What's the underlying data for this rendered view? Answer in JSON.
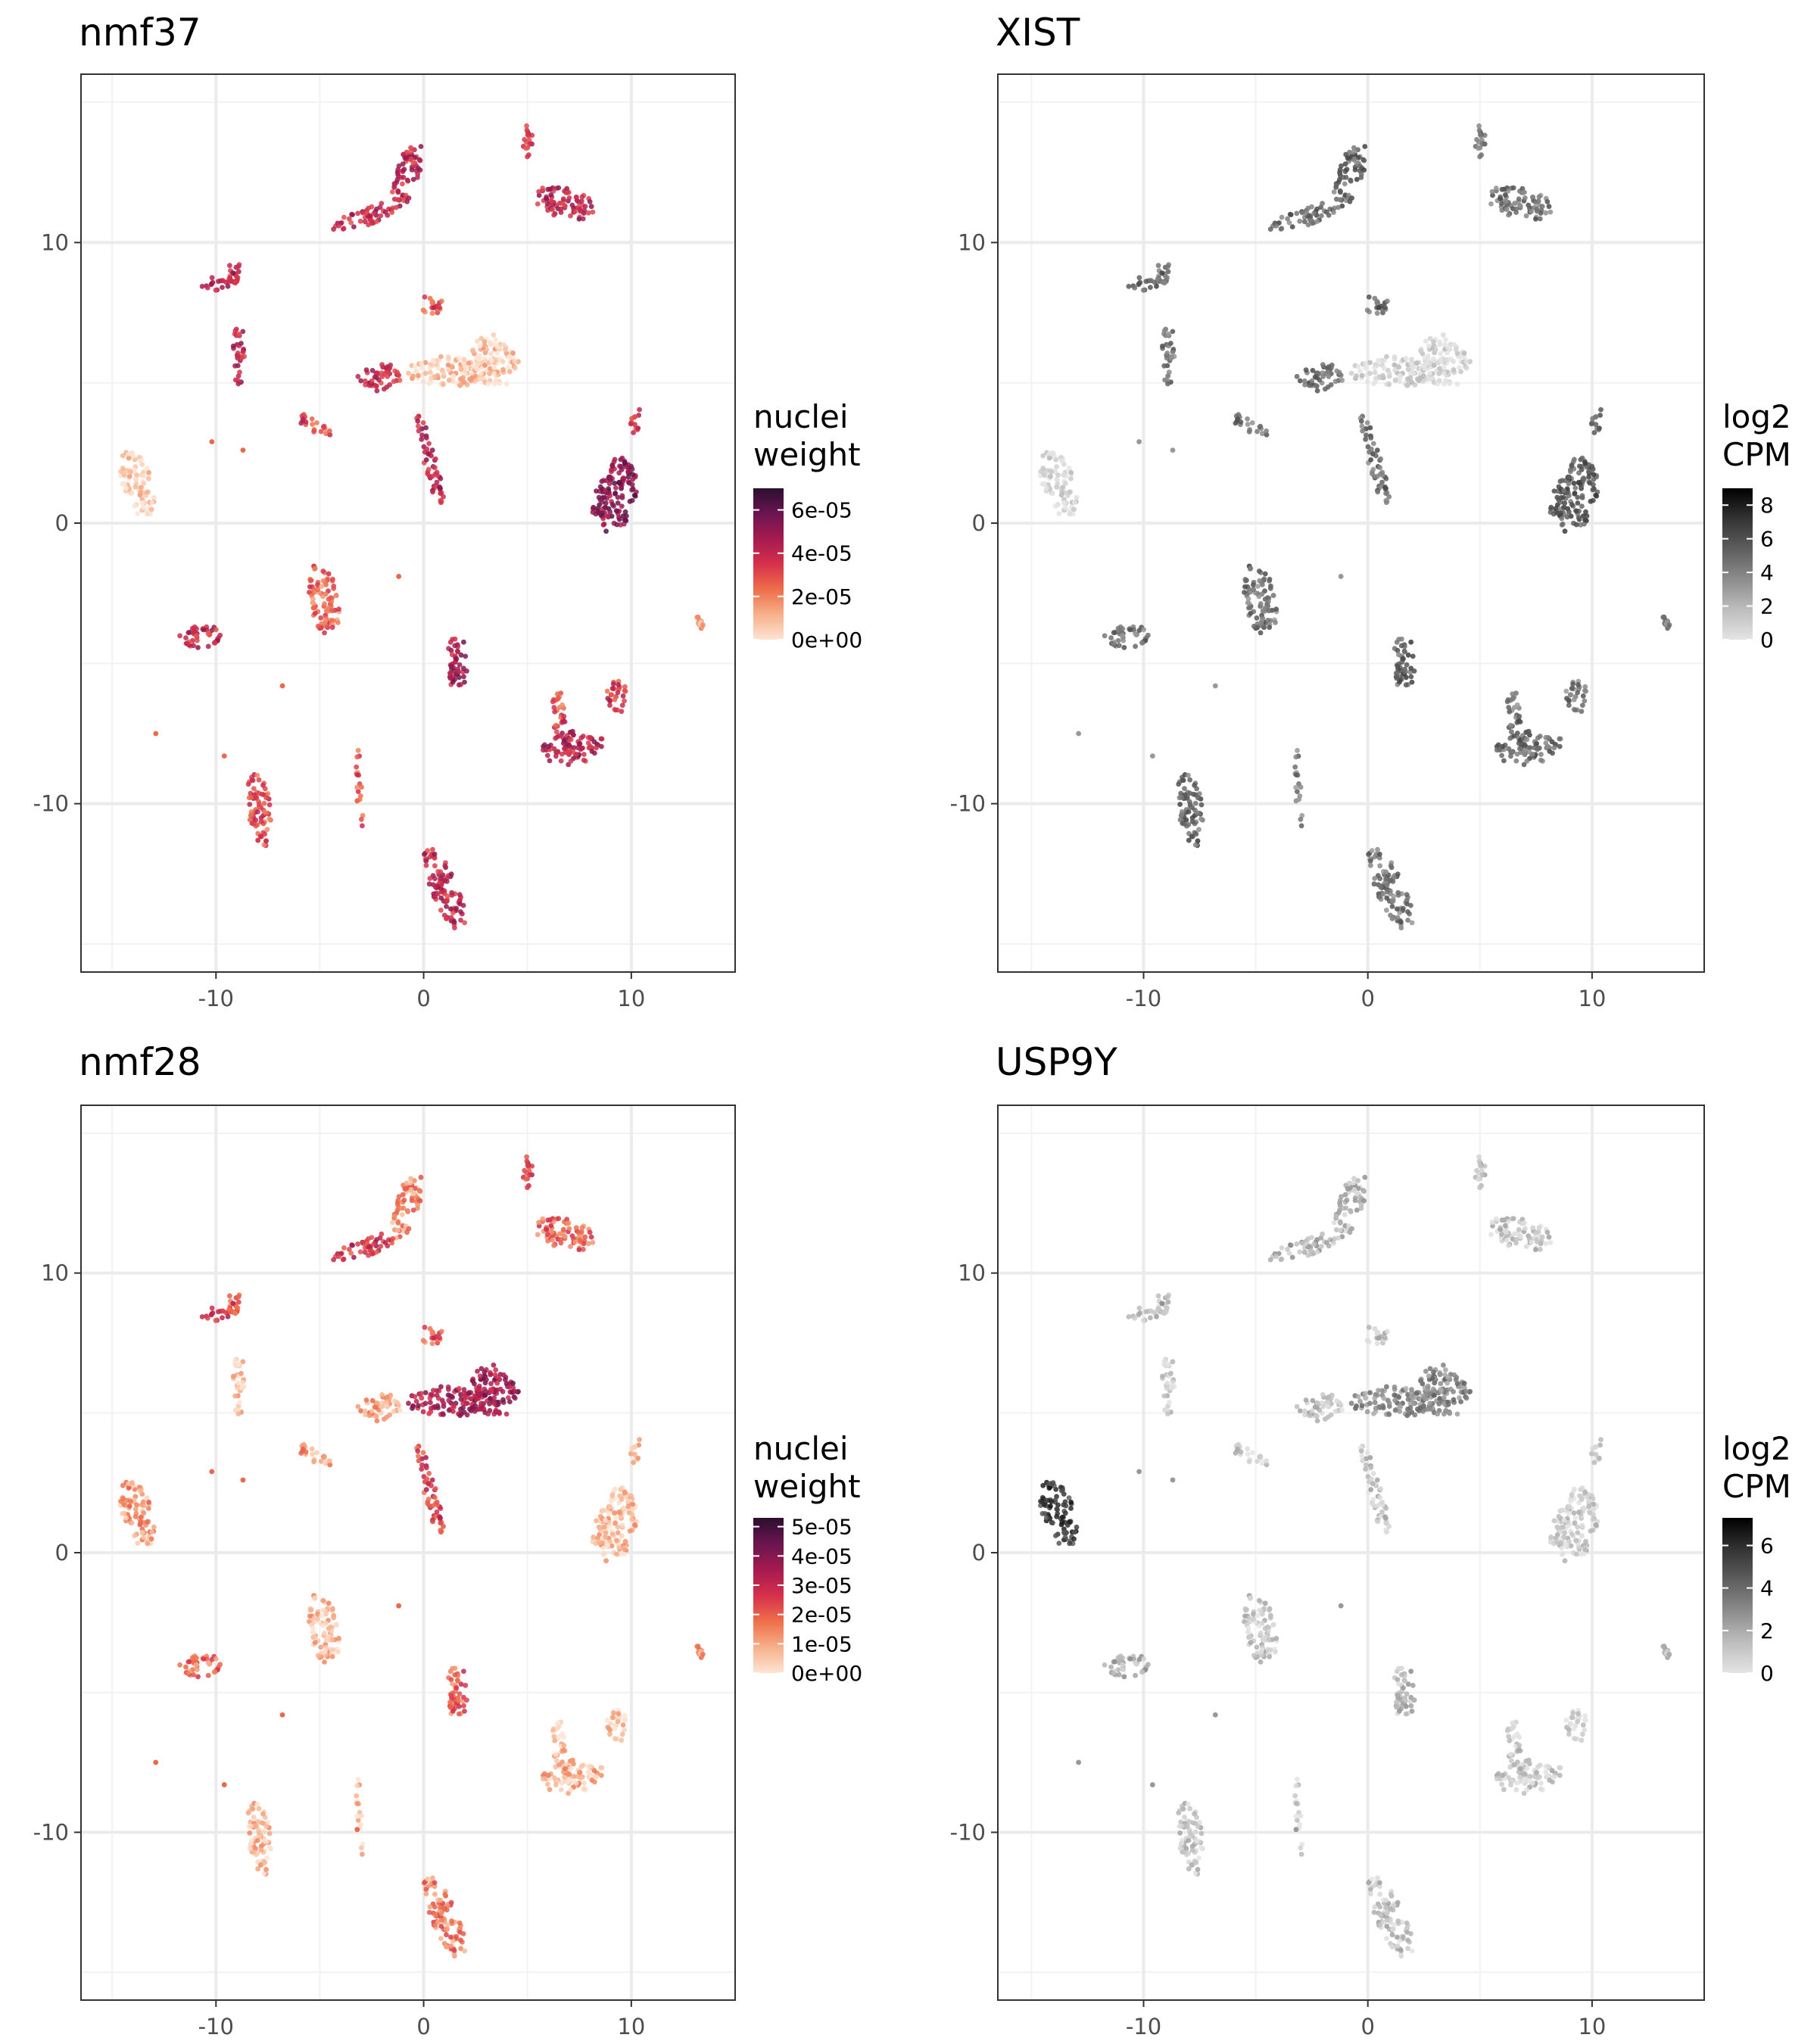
{
  "chart_data": [
    {
      "type": "scatter",
      "title": "nmf37",
      "xlabel": "",
      "ylabel": "",
      "xlim": [
        -16.5,
        15
      ],
      "ylim": [
        -16,
        16
      ],
      "x_ticks": [
        "-10",
        "0",
        "10"
      ],
      "y_ticks": [
        "10",
        "0",
        "-10"
      ],
      "grid": true,
      "legend": {
        "title_lines": [
          "nuclei",
          "weight"
        ],
        "position": "right",
        "range": [
          0,
          7e-05
        ],
        "ticks": [
          {
            "value": 6e-05,
            "label": "6e-05"
          },
          {
            "value": 4e-05,
            "label": "4e-05"
          },
          {
            "value": 2e-05,
            "label": "2e-05"
          },
          {
            "value": 0,
            "label": "0e+00"
          }
        ]
      },
      "colors": [
        "#fde4d3",
        "#f6b08a",
        "#ee6e4a",
        "#d6304b",
        "#a51a4f",
        "#6a1550",
        "#2b0f2e"
      ],
      "cluster_values": [
        4.1e-05,
        4e-05,
        3.6e-05,
        4.2e-05,
        6e-06,
        5e-06,
        3.8e-05,
        4e-05,
        4.4e-05,
        4e-06,
        5.2e-05,
        3.1e-05,
        2.5e-05,
        4.3e-05,
        3.9e-05,
        4.6e-05,
        3e-05,
        4.1e-05,
        2.8e-05,
        4.3e-05,
        3.5e-05,
        3e-05,
        3.3e-05,
        4.1e-05,
        3e-05,
        1.2e-05
      ]
    },
    {
      "type": "scatter",
      "title": "XIST",
      "xlabel": "",
      "ylabel": "",
      "xlim": [
        -16.5,
        15
      ],
      "ylim": [
        -16,
        16
      ],
      "x_ticks": [
        "-10",
        "0",
        "10"
      ],
      "y_ticks": [
        "10",
        "0",
        "-10"
      ],
      "grid": true,
      "legend": {
        "title_lines": [
          "log2",
          "CPM"
        ],
        "position": "right",
        "range": [
          0,
          9
        ],
        "ticks": [
          {
            "value": 8,
            "label": "8"
          },
          {
            "value": 6,
            "label": "6"
          },
          {
            "value": 4,
            "label": "4"
          },
          {
            "value": 2,
            "label": "2"
          },
          {
            "value": 0,
            "label": "0"
          }
        ]
      },
      "colors": [
        "#e4e4e4",
        "#bdbdbd",
        "#8c8c8c",
        "#5e5e5e",
        "#333333",
        "#000000"
      ],
      "cluster_values": [
        5.2,
        5.0,
        4.6,
        4.8,
        0.6,
        0.4,
        4.8,
        5.0,
        5.2,
        0.5,
        5.6,
        4.6,
        4.6,
        5.0,
        4.6,
        5.4,
        5.0,
        4.6,
        4.2,
        5.0,
        4.6,
        4.6,
        4.8,
        4.6,
        5.2,
        4.0
      ]
    },
    {
      "type": "scatter",
      "title": "nmf28",
      "xlabel": "",
      "ylabel": "",
      "xlim": [
        -16.5,
        15
      ],
      "ylim": [
        -16,
        16
      ],
      "x_ticks": [
        "-10",
        "0",
        "10"
      ],
      "y_ticks": [
        "10",
        "0",
        "-10"
      ],
      "grid": true,
      "legend": {
        "title_lines": [
          "nuclei",
          "weight"
        ],
        "position": "right",
        "range": [
          0,
          5.3e-05
        ],
        "ticks": [
          {
            "value": 5e-05,
            "label": "5e-05"
          },
          {
            "value": 4e-05,
            "label": "4e-05"
          },
          {
            "value": 3e-05,
            "label": "3e-05"
          },
          {
            "value": 2e-05,
            "label": "2e-05"
          },
          {
            "value": 1e-05,
            "label": "1e-05"
          },
          {
            "value": 0,
            "label": "0e+00"
          }
        ]
      },
      "colors": [
        "#fde4d3",
        "#f6b08a",
        "#ee6e4a",
        "#d6304b",
        "#a51a4f",
        "#6a1550",
        "#2b0f2e"
      ],
      "cluster_values": [
        1.4e-05,
        2.8e-05,
        2.6e-05,
        2e-05,
        3.4e-05,
        3.6e-05,
        1e-05,
        2.6e-05,
        2.4e-05,
        1.2e-05,
        6e-06,
        1.1e-05,
        6e-06,
        2.6e-05,
        1.8e-05,
        2e-05,
        6e-06,
        1.6e-05,
        5e-06,
        8e-06,
        5e-06,
        4e-06,
        6e-06,
        5e-06,
        2.2e-05,
        1.2e-05
      ]
    },
    {
      "type": "scatter",
      "title": "USP9Y",
      "xlabel": "",
      "ylabel": "",
      "xlim": [
        -16.5,
        15
      ],
      "ylim": [
        -16,
        16
      ],
      "x_ticks": [
        "-10",
        "0",
        "10"
      ],
      "y_ticks": [
        "10",
        "0",
        "-10"
      ],
      "grid": true,
      "legend": {
        "title_lines": [
          "log2",
          "CPM"
        ],
        "position": "right",
        "range": [
          0,
          7.3
        ],
        "ticks": [
          {
            "value": 6,
            "label": "6"
          },
          {
            "value": 4,
            "label": "4"
          },
          {
            "value": 2,
            "label": "2"
          },
          {
            "value": 0,
            "label": "0"
          }
        ]
      },
      "colors": [
        "#e4e4e4",
        "#bdbdbd",
        "#8c8c8c",
        "#5e5e5e",
        "#333333",
        "#000000"
      ],
      "cluster_values": [
        1.6,
        1.8,
        1.4,
        1.2,
        3.0,
        3.2,
        1.2,
        1.2,
        2.0,
        5.6,
        0.8,
        0.8,
        1.0,
        1.2,
        1.8,
        1.6,
        1.0,
        1.2,
        0.6,
        1.0,
        0.6,
        0.8,
        0.8,
        0.8,
        1.2,
        1.4
      ]
    }
  ]
}
